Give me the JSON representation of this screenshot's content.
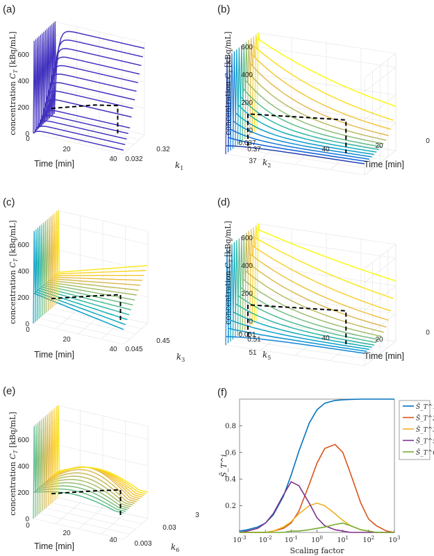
{
  "figure": {
    "panels": [
      {
        "id": "a",
        "label": "(a)",
        "zlabel": "concentration C_T [kBq/mL]",
        "z_ticks": [
          "0",
          "200",
          "400",
          "600"
        ],
        "time_label": "Time [min]",
        "time_ticks": [
          "0",
          "20",
          "40"
        ],
        "param_label": "k_1",
        "param_ticks": [
          "0.032",
          "0.32"
        ]
      },
      {
        "id": "b",
        "label": "(b)",
        "zlabel": "concentration C_T [kBq/mL]",
        "z_ticks": [
          "0",
          "200",
          "400",
          "600"
        ],
        "time_label": "Time [min]",
        "time_ticks": [
          "40",
          "20",
          "0"
        ],
        "param_label": "k_2",
        "param_ticks": [
          "0.037",
          "0.37",
          "37"
        ]
      },
      {
        "id": "c",
        "label": "(c)",
        "zlabel": "concentration C_T [kBq/mL]",
        "z_ticks": [
          "0",
          "200",
          "400",
          "600"
        ],
        "time_label": "Time [min]",
        "time_ticks": [
          "0",
          "20",
          "40"
        ],
        "param_label": "k_3",
        "param_ticks": [
          "0.045",
          "0.45"
        ]
      },
      {
        "id": "d",
        "label": "(d)",
        "zlabel": "concentration C_T [kBq/mL]",
        "z_ticks": [
          "0",
          "200",
          "400",
          "600"
        ],
        "time_label": "Time [min]",
        "time_ticks": [
          "40",
          "20",
          "0"
        ],
        "param_label": "k_5",
        "param_ticks": [
          "0.051",
          "0.51",
          "51"
        ]
      },
      {
        "id": "e",
        "label": "(e)",
        "zlabel": "concentration C_T [kBq/mL]",
        "z_ticks": [
          "0",
          "200",
          "400",
          "600"
        ],
        "time_label": "Time [min]",
        "time_ticks": [
          "0",
          "20",
          "40"
        ],
        "param_label": "k_6",
        "param_ticks": [
          "0.003",
          "0.03",
          "3"
        ]
      },
      {
        "id": "f",
        "label": "(f)"
      }
    ]
  },
  "chart_data": {
    "type": "line",
    "title": "",
    "xlabel": "Scaling factor",
    "ylabel": "S̄_T^i",
    "xscale": "log",
    "xlim": [
      0.001,
      1000
    ],
    "ylim": [
      0,
      1.0
    ],
    "x_ticks": [
      "10^-3",
      "10^-2",
      "10^-1",
      "10^0",
      "10^1",
      "10^2",
      "10^3"
    ],
    "y_ticks": [
      "0.2",
      "0.4",
      "0.6",
      "0.8"
    ],
    "legend_position": "top-right",
    "x": [
      0.001,
      0.002,
      0.005,
      0.01,
      0.02,
      0.05,
      0.1,
      0.2,
      0.5,
      1,
      2,
      5,
      10,
      20,
      50,
      100,
      200,
      500,
      1000
    ],
    "series": [
      {
        "name": "S̄_T^1",
        "color": "#0072BD",
        "values": [
          0.01,
          0.02,
          0.04,
          0.07,
          0.13,
          0.27,
          0.43,
          0.61,
          0.82,
          0.92,
          0.97,
          0.99,
          0.995,
          0.998,
          1.0,
          1.0,
          1.0,
          1.0,
          1.0
        ]
      },
      {
        "name": "S̄_T^2",
        "color": "#D95319",
        "values": [
          0.0,
          0.0,
          0.0,
          0.0,
          0.01,
          0.03,
          0.07,
          0.16,
          0.36,
          0.52,
          0.63,
          0.66,
          0.6,
          0.44,
          0.22,
          0.1,
          0.05,
          0.01,
          0.0
        ]
      },
      {
        "name": "S̄_T^3",
        "color": "#EDB120",
        "values": [
          0.0,
          0.0,
          0.0,
          0.0,
          0.01,
          0.04,
          0.08,
          0.14,
          0.2,
          0.22,
          0.2,
          0.14,
          0.09,
          0.05,
          0.02,
          0.01,
          0.0,
          0.0,
          0.0
        ]
      },
      {
        "name": "S̄_T^5",
        "color": "#7E2F8E",
        "values": [
          0.0,
          0.01,
          0.03,
          0.07,
          0.14,
          0.28,
          0.38,
          0.35,
          0.22,
          0.11,
          0.05,
          0.02,
          0.01,
          0.0,
          0.0,
          0.0,
          0.0,
          0.0,
          0.0
        ]
      },
      {
        "name": "S̄_T^6",
        "color": "#77AC30",
        "values": [
          0.0,
          0.0,
          0.0,
          0.0,
          0.0,
          0.0,
          0.01,
          0.01,
          0.02,
          0.03,
          0.04,
          0.06,
          0.07,
          0.05,
          0.02,
          0.01,
          0.0,
          0.0,
          0.0
        ]
      }
    ]
  }
}
